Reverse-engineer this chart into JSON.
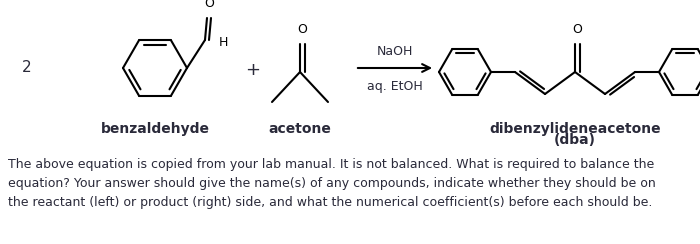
{
  "background_color": "#ffffff",
  "fig_width": 7.0,
  "fig_height": 2.44,
  "dpi": 100,
  "number_label": "2",
  "number_fontsize": 11,
  "plus_fontsize": 13,
  "reagent_line1": "NaOH",
  "reagent_line2": "aq. EtOH",
  "reagent_fontsize": 9,
  "benzaldehyde_label": "benzaldehyde",
  "acetone_label": "acetone",
  "dba_label1": "dibenzylideneacetone",
  "dba_label2": "(dba)",
  "label_fontsize": 10,
  "paragraph_text": "The above equation is copied from your lab manual. It is not balanced. What is required to balance the\nequation? Your answer should give the name(s) of any compounds, indicate whether they should be on\nthe reactant (left) or product (right) side, and what the numerical coefficient(s) before each should be.",
  "paragraph_fontsize": 9.0,
  "text_color": "#2a2a3a"
}
